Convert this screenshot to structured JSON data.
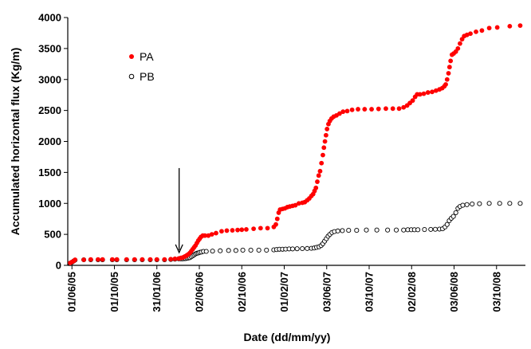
{
  "chart_data": {
    "type": "scatter",
    "title": "",
    "xlabel": "Date (dd/mm/yy)",
    "ylabel": "Accumulated horizontal flux (Kg/m)",
    "ylim": [
      0,
      4000
    ],
    "xlim": [
      "2005-05-20",
      "2008-12-25"
    ],
    "y_ticks": [
      0,
      500,
      1000,
      1500,
      2000,
      2500,
      3000,
      3500,
      4000
    ],
    "x_ticks": [
      {
        "date": "2005-06-01",
        "label": "01/06/05"
      },
      {
        "date": "2005-10-01",
        "label": "01/10/05"
      },
      {
        "date": "2006-01-31",
        "label": "31/01/06"
      },
      {
        "date": "2006-06-02",
        "label": "02/06/06"
      },
      {
        "date": "2006-10-02",
        "label": "02/10/06"
      },
      {
        "date": "2007-02-01",
        "label": "01/02/07"
      },
      {
        "date": "2007-06-03",
        "label": "03/06/07"
      },
      {
        "date": "2007-10-03",
        "label": "03/10/07"
      },
      {
        "date": "2008-02-02",
        "label": "02/02/08"
      },
      {
        "date": "2008-06-03",
        "label": "03/06/08"
      },
      {
        "date": "2008-10-03",
        "label": "03/10/08"
      }
    ],
    "grid": false,
    "legend_position": "top-left",
    "annotation": {
      "type": "arrow",
      "date": "2006-04-05",
      "from_y": 1570,
      "to_y": 220
    },
    "series": [
      {
        "name": "PA",
        "color": "#ff0000",
        "marker": "filled-circle",
        "points": [
          [
            "2005-05-27",
            40
          ],
          [
            "2005-06-01",
            55
          ],
          [
            "2005-06-06",
            70
          ],
          [
            "2005-06-10",
            90
          ],
          [
            "2005-07-05",
            90
          ],
          [
            "2005-07-25",
            95
          ],
          [
            "2005-08-15",
            95
          ],
          [
            "2005-08-28",
            95
          ],
          [
            "2005-09-25",
            95
          ],
          [
            "2005-10-08",
            95
          ],
          [
            "2005-11-05",
            95
          ],
          [
            "2005-11-28",
            95
          ],
          [
            "2005-12-20",
            95
          ],
          [
            "2006-01-12",
            95
          ],
          [
            "2006-01-31",
            95
          ],
          [
            "2006-02-22",
            95
          ],
          [
            "2006-03-12",
            100
          ],
          [
            "2006-03-24",
            105
          ],
          [
            "2006-04-04",
            110
          ],
          [
            "2006-04-10",
            120
          ],
          [
            "2006-04-15",
            125
          ],
          [
            "2006-04-20",
            140
          ],
          [
            "2006-04-24",
            150
          ],
          [
            "2006-04-28",
            165
          ],
          [
            "2006-05-02",
            180
          ],
          [
            "2006-05-06",
            200
          ],
          [
            "2006-05-10",
            230
          ],
          [
            "2006-05-14",
            260
          ],
          [
            "2006-05-18",
            290
          ],
          [
            "2006-05-22",
            320
          ],
          [
            "2006-05-26",
            360
          ],
          [
            "2006-05-30",
            400
          ],
          [
            "2006-06-03",
            430
          ],
          [
            "2006-06-07",
            460
          ],
          [
            "2006-06-12",
            480
          ],
          [
            "2006-06-18",
            480
          ],
          [
            "2006-06-28",
            480
          ],
          [
            "2006-07-08",
            500
          ],
          [
            "2006-07-20",
            520
          ],
          [
            "2006-08-05",
            550
          ],
          [
            "2006-08-20",
            560
          ],
          [
            "2006-09-05",
            565
          ],
          [
            "2006-09-20",
            570
          ],
          [
            "2006-10-02",
            575
          ],
          [
            "2006-10-15",
            580
          ],
          [
            "2006-11-05",
            590
          ],
          [
            "2006-11-25",
            600
          ],
          [
            "2006-12-15",
            600
          ],
          [
            "2007-01-02",
            620
          ],
          [
            "2007-01-08",
            660
          ],
          [
            "2007-01-12",
            750
          ],
          [
            "2007-01-16",
            850
          ],
          [
            "2007-01-20",
            900
          ],
          [
            "2007-01-27",
            910
          ],
          [
            "2007-02-03",
            920
          ],
          [
            "2007-02-10",
            940
          ],
          [
            "2007-02-17",
            950
          ],
          [
            "2007-02-25",
            960
          ],
          [
            "2007-03-05",
            970
          ],
          [
            "2007-03-15",
            1000
          ],
          [
            "2007-03-25",
            1010
          ],
          [
            "2007-04-01",
            1020
          ],
          [
            "2007-04-08",
            1050
          ],
          [
            "2007-04-14",
            1080
          ],
          [
            "2007-04-20",
            1120
          ],
          [
            "2007-04-25",
            1150
          ],
          [
            "2007-04-29",
            1200
          ],
          [
            "2007-05-03",
            1250
          ],
          [
            "2007-05-07",
            1350
          ],
          [
            "2007-05-11",
            1450
          ],
          [
            "2007-05-15",
            1520
          ],
          [
            "2007-05-19",
            1650
          ],
          [
            "2007-05-23",
            1780
          ],
          [
            "2007-05-26",
            1900
          ],
          [
            "2007-05-29",
            2000
          ],
          [
            "2007-06-01",
            2100
          ],
          [
            "2007-06-04",
            2200
          ],
          [
            "2007-06-08",
            2280
          ],
          [
            "2007-06-12",
            2330
          ],
          [
            "2007-06-17",
            2370
          ],
          [
            "2007-06-23",
            2400
          ],
          [
            "2007-07-01",
            2420
          ],
          [
            "2007-07-10",
            2450
          ],
          [
            "2007-07-20",
            2480
          ],
          [
            "2007-08-01",
            2490
          ],
          [
            "2007-08-15",
            2510
          ],
          [
            "2007-09-01",
            2520
          ],
          [
            "2007-09-20",
            2520
          ],
          [
            "2007-10-10",
            2520
          ],
          [
            "2007-10-30",
            2525
          ],
          [
            "2007-11-20",
            2530
          ],
          [
            "2007-12-10",
            2530
          ],
          [
            "2007-12-28",
            2530
          ],
          [
            "2008-01-10",
            2550
          ],
          [
            "2008-01-20",
            2580
          ],
          [
            "2008-01-28",
            2620
          ],
          [
            "2008-02-05",
            2660
          ],
          [
            "2008-02-12",
            2720
          ],
          [
            "2008-02-18",
            2760
          ],
          [
            "2008-02-26",
            2760
          ],
          [
            "2008-03-08",
            2770
          ],
          [
            "2008-03-20",
            2790
          ],
          [
            "2008-04-01",
            2800
          ],
          [
            "2008-04-12",
            2820
          ],
          [
            "2008-04-22",
            2840
          ],
          [
            "2008-04-30",
            2860
          ],
          [
            "2008-05-06",
            2890
          ],
          [
            "2008-05-10",
            2920
          ],
          [
            "2008-05-14",
            3000
          ],
          [
            "2008-05-18",
            3100
          ],
          [
            "2008-05-21",
            3200
          ],
          [
            "2008-05-24",
            3300
          ],
          [
            "2008-05-28",
            3400
          ],
          [
            "2008-06-02",
            3420
          ],
          [
            "2008-06-08",
            3450
          ],
          [
            "2008-06-14",
            3500
          ],
          [
            "2008-06-20",
            3580
          ],
          [
            "2008-06-26",
            3650
          ],
          [
            "2008-07-02",
            3700
          ],
          [
            "2008-07-10",
            3720
          ],
          [
            "2008-07-20",
            3740
          ],
          [
            "2008-08-05",
            3770
          ],
          [
            "2008-08-22",
            3790
          ],
          [
            "2008-09-12",
            3830
          ],
          [
            "2008-10-05",
            3840
          ],
          [
            "2008-11-10",
            3860
          ],
          [
            "2008-12-10",
            3870
          ]
        ]
      },
      {
        "name": "PB",
        "color": "#000000",
        "marker": "open-circle",
        "points": [
          [
            "2005-05-27",
            30
          ],
          [
            "2005-06-01",
            50
          ],
          [
            "2005-06-06",
            70
          ],
          [
            "2005-06-10",
            85
          ],
          [
            "2005-07-05",
            90
          ],
          [
            "2005-07-25",
            90
          ],
          [
            "2005-08-15",
            90
          ],
          [
            "2005-08-28",
            90
          ],
          [
            "2005-09-25",
            90
          ],
          [
            "2005-10-08",
            90
          ],
          [
            "2005-11-05",
            90
          ],
          [
            "2005-11-28",
            90
          ],
          [
            "2005-12-20",
            90
          ],
          [
            "2006-01-12",
            90
          ],
          [
            "2006-01-31",
            90
          ],
          [
            "2006-02-22",
            90
          ],
          [
            "2006-03-12",
            95
          ],
          [
            "2006-03-24",
            100
          ],
          [
            "2006-04-04",
            105
          ],
          [
            "2006-04-10",
            105
          ],
          [
            "2006-04-15",
            105
          ],
          [
            "2006-04-20",
            108
          ],
          [
            "2006-04-24",
            110
          ],
          [
            "2006-04-28",
            115
          ],
          [
            "2006-05-02",
            120
          ],
          [
            "2006-05-06",
            125
          ],
          [
            "2006-05-10",
            140
          ],
          [
            "2006-05-14",
            155
          ],
          [
            "2006-05-18",
            170
          ],
          [
            "2006-05-22",
            185
          ],
          [
            "2006-05-26",
            195
          ],
          [
            "2006-05-30",
            200
          ],
          [
            "2006-06-03",
            210
          ],
          [
            "2006-06-08",
            215
          ],
          [
            "2006-06-14",
            225
          ],
          [
            "2006-06-22",
            225
          ],
          [
            "2006-07-10",
            230
          ],
          [
            "2006-08-01",
            235
          ],
          [
            "2006-08-25",
            240
          ],
          [
            "2006-09-15",
            240
          ],
          [
            "2006-10-05",
            245
          ],
          [
            "2006-10-28",
            245
          ],
          [
            "2006-11-20",
            245
          ],
          [
            "2006-12-12",
            245
          ],
          [
            "2007-01-02",
            250
          ],
          [
            "2007-01-10",
            255
          ],
          [
            "2007-01-18",
            260
          ],
          [
            "2007-01-27",
            260
          ],
          [
            "2007-02-05",
            262
          ],
          [
            "2007-02-15",
            265
          ],
          [
            "2007-02-25",
            265
          ],
          [
            "2007-03-10",
            268
          ],
          [
            "2007-03-25",
            270
          ],
          [
            "2007-04-08",
            272
          ],
          [
            "2007-04-20",
            275
          ],
          [
            "2007-04-28",
            280
          ],
          [
            "2007-05-05",
            290
          ],
          [
            "2007-05-12",
            300
          ],
          [
            "2007-05-18",
            320
          ],
          [
            "2007-05-23",
            350
          ],
          [
            "2007-05-28",
            390
          ],
          [
            "2007-06-02",
            430
          ],
          [
            "2007-06-07",
            470
          ],
          [
            "2007-06-12",
            500
          ],
          [
            "2007-06-18",
            530
          ],
          [
            "2007-06-25",
            545
          ],
          [
            "2007-07-05",
            555
          ],
          [
            "2007-07-18",
            560
          ],
          [
            "2007-08-05",
            565
          ],
          [
            "2007-08-28",
            565
          ],
          [
            "2007-09-25",
            570
          ],
          [
            "2007-10-25",
            570
          ],
          [
            "2007-11-25",
            570
          ],
          [
            "2007-12-20",
            570
          ],
          [
            "2008-01-10",
            570
          ],
          [
            "2008-01-22",
            575
          ],
          [
            "2008-02-01",
            575
          ],
          [
            "2008-02-10",
            575
          ],
          [
            "2008-02-20",
            575
          ],
          [
            "2008-03-10",
            578
          ],
          [
            "2008-03-28",
            580
          ],
          [
            "2008-04-10",
            582
          ],
          [
            "2008-04-22",
            585
          ],
          [
            "2008-05-01",
            590
          ],
          [
            "2008-05-08",
            620
          ],
          [
            "2008-05-14",
            660
          ],
          [
            "2008-05-20",
            720
          ],
          [
            "2008-05-26",
            760
          ],
          [
            "2008-06-01",
            790
          ],
          [
            "2008-06-08",
            850
          ],
          [
            "2008-06-14",
            920
          ],
          [
            "2008-06-20",
            950
          ],
          [
            "2008-06-28",
            970
          ],
          [
            "2008-07-10",
            980
          ],
          [
            "2008-07-25",
            990
          ],
          [
            "2008-08-15",
            995
          ],
          [
            "2008-09-12",
            1000
          ],
          [
            "2008-10-12",
            1000
          ],
          [
            "2008-11-10",
            1000
          ],
          [
            "2008-12-10",
            1000
          ]
        ]
      }
    ]
  }
}
